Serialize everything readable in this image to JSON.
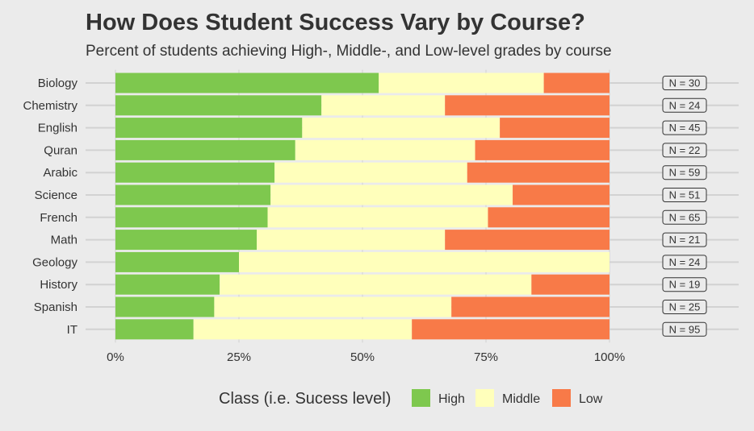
{
  "chart_data": {
    "type": "bar",
    "orientation": "horizontal",
    "stacked": true,
    "normalized": true,
    "title": "How Does Student Success Vary by Course?",
    "subtitle": "Percent of students achieving High-, Middle-, and Low-level grades by course",
    "categories": [
      "Biology",
      "Chemistry",
      "English",
      "Quran",
      "Arabic",
      "Science",
      "French",
      "Math",
      "Geology",
      "History",
      "Spanish",
      "IT"
    ],
    "series": [
      {
        "name": "High",
        "color": "#7ec84e",
        "values": [
          53.3,
          41.7,
          37.8,
          36.4,
          32.2,
          31.4,
          30.8,
          28.6,
          25.0,
          21.1,
          20.0,
          15.8
        ]
      },
      {
        "name": "Middle",
        "color": "#ffffbb",
        "values": [
          33.4,
          25.0,
          40.0,
          36.4,
          39.0,
          49.0,
          44.6,
          38.1,
          75.0,
          63.1,
          48.0,
          44.2
        ]
      },
      {
        "name": "Low",
        "color": "#f87a48",
        "values": [
          13.3,
          33.3,
          22.2,
          27.2,
          28.8,
          19.6,
          24.6,
          33.3,
          0.0,
          15.8,
          32.0,
          40.0
        ]
      }
    ],
    "counts": [
      "N = 30",
      "N = 24",
      "N = 45",
      "N = 22",
      "N = 59",
      "N = 51",
      "N = 65",
      "N = 21",
      "N = 24",
      "N = 19",
      "N = 25",
      "N = 95"
    ],
    "xlim": [
      0,
      100
    ],
    "xticks": [
      0,
      25,
      50,
      75,
      100
    ],
    "xtick_labels": [
      "0%",
      "25%",
      "50%",
      "75%",
      "100%"
    ],
    "grid": true,
    "legend": {
      "title": "Class (i.e. Sucess level)",
      "position": "bottom",
      "items": [
        "High",
        "Middle",
        "Low"
      ]
    }
  }
}
